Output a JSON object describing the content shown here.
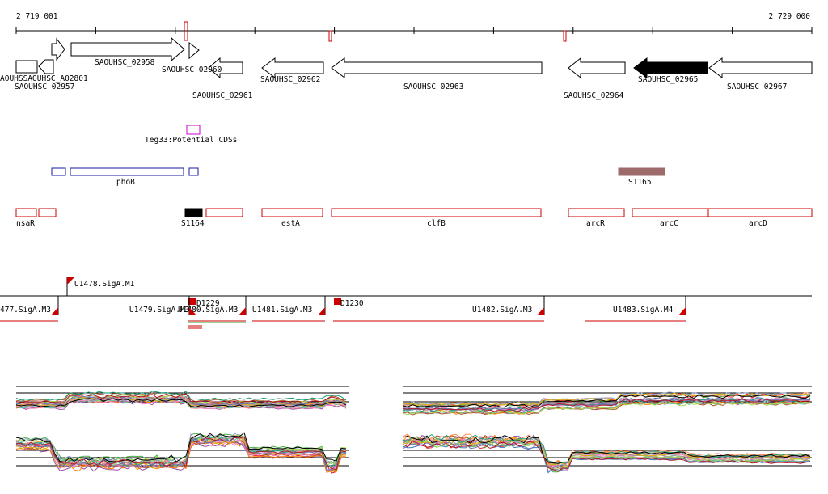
{
  "coords": {
    "start": "2 719 001",
    "end": "2 729 000"
  },
  "genes": [
    {
      "label": "SAOUHSC_02957",
      "strand": "+"
    },
    {
      "label": "SAOUHSC_02958",
      "strand": "+"
    },
    {
      "label": "SAOUHSC_02960",
      "strand": "+"
    },
    {
      "label": "SAOUHSC_02961",
      "strand": "-"
    },
    {
      "label": "SAOUHSC_02962",
      "strand": "-"
    },
    {
      "label": "SAOUHSC_02963",
      "strand": "-"
    },
    {
      "label": "SAOUHSC_02964",
      "strand": "-"
    },
    {
      "label": "SAOUHSC_02965",
      "strand": "-",
      "highlighted": true
    },
    {
      "label": "SAOUHSC_02967",
      "strand": "-"
    }
  ],
  "gene_label_partial": "AOUHSSAOUHSC_A02801",
  "potential_cds": {
    "label": "Teg33:Potential CDSs"
  },
  "blue_features": [
    {
      "label": "phoB"
    }
  ],
  "s1165": {
    "label": "S1165"
  },
  "red_features": [
    {
      "label": "nsaR"
    },
    {
      "label": "S1164",
      "filled": true
    },
    {
      "label": "estA"
    },
    {
      "label": "clfB"
    },
    {
      "label": "arcR"
    },
    {
      "label": "arcC"
    },
    {
      "label": "arcD"
    }
  ],
  "promoters": [
    {
      "label": "U1478.SigA.M1"
    },
    {
      "label": "477.SigA.M3"
    },
    {
      "label": "U1479.SigA.M3"
    },
    {
      "label": "D1229"
    },
    {
      "label": "U1480.SigA.M3"
    },
    {
      "label": "U1481.SigA.M3"
    },
    {
      "label": "D1230"
    },
    {
      "label": "U1482.SigA.M3"
    },
    {
      "label": "U1483.SigA.M4"
    }
  ],
  "colors": {
    "gene_outline": "#000000",
    "highlight": "#000000",
    "red": "#cc0000",
    "blue": "#1a1aa0",
    "magenta": "#cc00cc",
    "s1165": "#9e6b6b",
    "green": "#33aa33"
  }
}
